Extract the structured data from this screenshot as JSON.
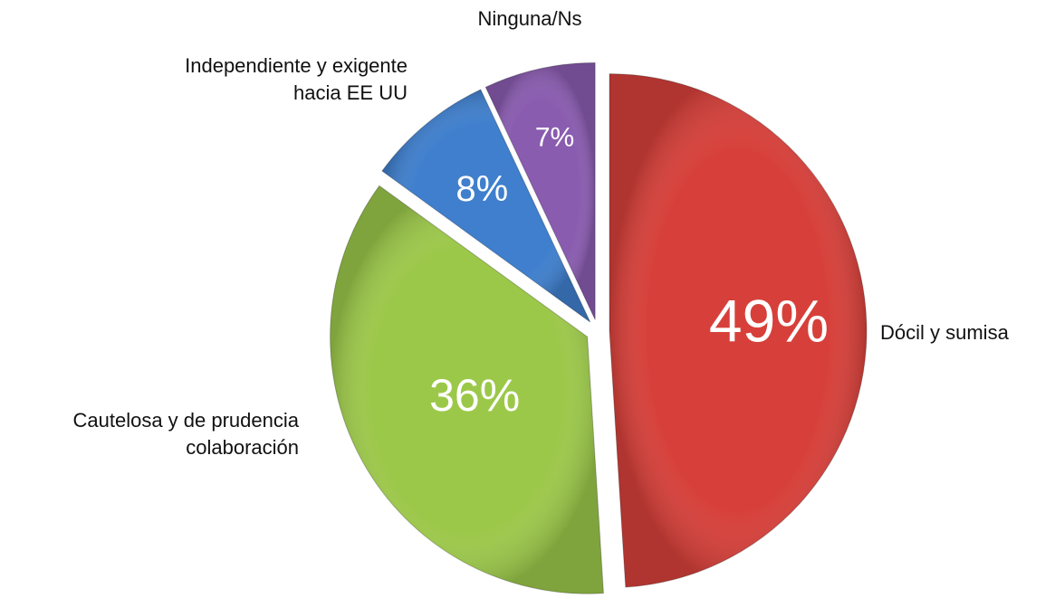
{
  "chart_data": {
    "type": "pie",
    "categories": [
      "Dócil y sumisa",
      "Cautelosa y de prudencia colaboración",
      "Independiente y exigente hacia EE UU",
      "Ninguna/Ns"
    ],
    "values": [
      49,
      36,
      8,
      7
    ],
    "value_labels": [
      "49%",
      "36%",
      "8%",
      "7%"
    ],
    "colors": [
      "#d7403a",
      "#9cc84a",
      "#3f7fcd",
      "#8a5cb0"
    ]
  }
}
